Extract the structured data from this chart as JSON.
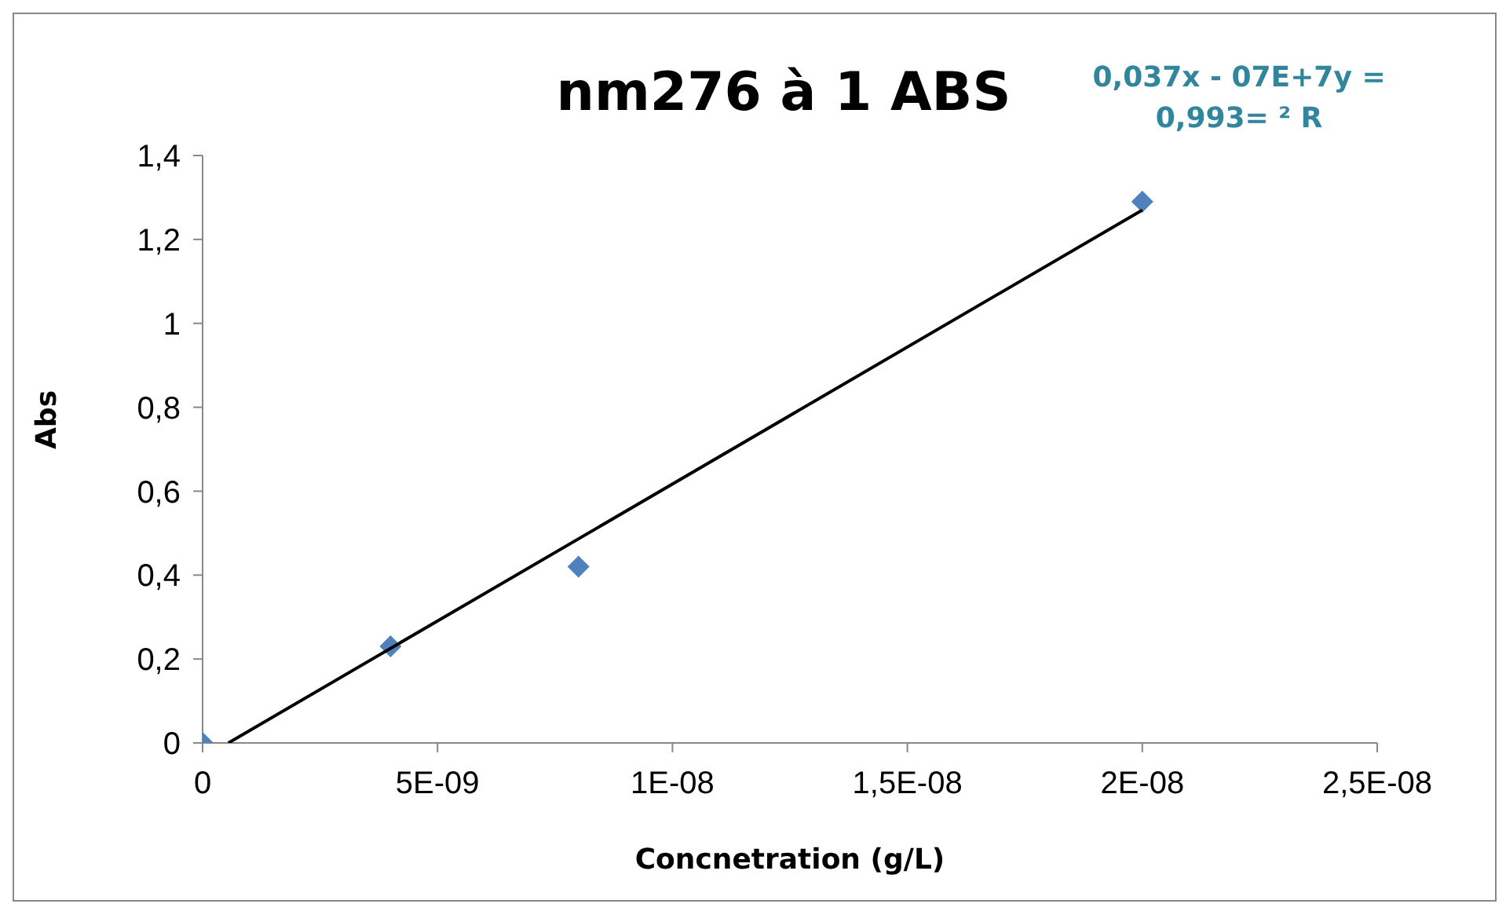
{
  "chart_data": {
    "type": "scatter",
    "title": "nm276 à 1 ABS",
    "xlabel": "Concnetration (g/L)",
    "ylabel": "Abs",
    "annotations": [
      "0,037x - 07E+7y =",
      "0,993= ² R"
    ],
    "series": [
      {
        "color": "#4f81bd",
        "marker": "diamond",
        "x": [
          0,
          4e-09,
          8e-09,
          2e-08
        ],
        "values": [
          0,
          0.23,
          0.42,
          1.29
        ]
      },
      {
        "type": "line",
        "color": "#000000",
        "marker": "none",
        "line_style": "solid",
        "x": [
          5.5e-10,
          2e-08
        ],
        "values": [
          0,
          1.27
        ]
      }
    ],
    "xlim": [
      0,
      2.5e-08
    ],
    "xticks": [
      0,
      {
        "value": 5e-09,
        "label": "5E-09"
      },
      {
        "value": 1e-08,
        "label": "1E-08"
      },
      {
        "value": 1.5e-08,
        "label": "1,5E-08"
      },
      {
        "value": 2e-08,
        "label": "2E-08"
      },
      {
        "value": 2.5e-08,
        "label": "2,5E-08"
      }
    ],
    "ylim": [
      0,
      1.4
    ],
    "yticks": [
      0,
      {
        "value": 0.2,
        "label": "0,2"
      },
      {
        "value": 0.4,
        "label": "0,4"
      },
      {
        "value": 0.6,
        "label": "0,6"
      },
      {
        "value": 0.8,
        "label": "0,8"
      },
      1,
      {
        "value": 1.2,
        "label": "1,2"
      },
      {
        "value": 1.4,
        "label": "1,4"
      }
    ],
    "grid": false,
    "legend": false
  }
}
